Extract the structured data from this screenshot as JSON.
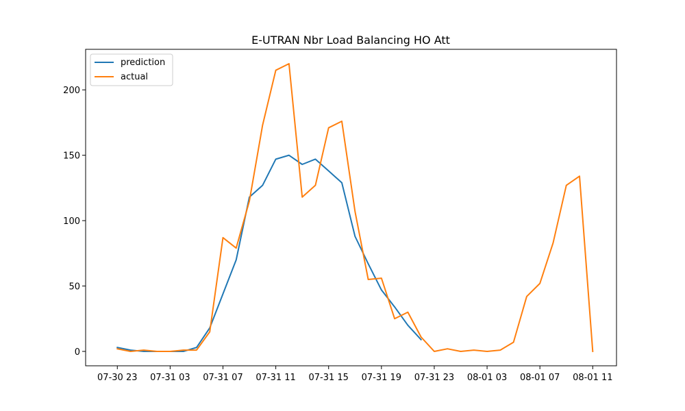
{
  "chart_data": {
    "type": "line",
    "title": "E-UTRAN Nbr Load Balancing HO Att",
    "xlabel": "",
    "ylabel": "",
    "x_tick_labels": [
      "07-30 23",
      "07-31 03",
      "07-31 07",
      "07-31 11",
      "07-31 15",
      "07-31 19",
      "07-31 23",
      "08-01 03",
      "08-01 07",
      "08-01 11"
    ],
    "x_tick_hours": [
      0,
      4,
      8,
      12,
      16,
      20,
      24,
      28,
      32,
      36
    ],
    "y_ticks": [
      0,
      50,
      100,
      150,
      200
    ],
    "xlim": [
      -2.4,
      37.8
    ],
    "ylim": [
      -11,
      231
    ],
    "grid": false,
    "legend_position": "upper left",
    "series": [
      {
        "name": "prediction",
        "color": "#1f77b4",
        "x_hours": [
          0,
          1,
          2,
          3,
          4,
          5,
          6,
          7,
          8,
          9,
          10,
          11,
          12,
          13,
          14,
          15,
          16,
          17,
          18,
          19,
          20,
          21,
          22,
          23
        ],
        "values": [
          3,
          1,
          0,
          0,
          0,
          0,
          3,
          18,
          44,
          70,
          118,
          127,
          147,
          150,
          143,
          147,
          138,
          129,
          88,
          67,
          47,
          34,
          20,
          9
        ]
      },
      {
        "name": "actual",
        "color": "#ff7f0e",
        "x_hours": [
          0,
          1,
          2,
          3,
          4,
          5,
          6,
          7,
          8,
          9,
          10,
          11,
          12,
          13,
          14,
          15,
          16,
          17,
          18,
          19,
          20,
          21,
          22,
          23,
          24,
          25,
          26,
          27,
          28,
          29,
          30,
          31,
          32,
          33,
          34,
          35,
          36
        ],
        "values": [
          2,
          0,
          1,
          0,
          0,
          1,
          1,
          15,
          87,
          79,
          115,
          173,
          215,
          220,
          118,
          127,
          171,
          176,
          107,
          55,
          56,
          25,
          30,
          11,
          0,
          2,
          0,
          1,
          0,
          1,
          7,
          42,
          52,
          83,
          127,
          134,
          0
        ]
      }
    ]
  }
}
